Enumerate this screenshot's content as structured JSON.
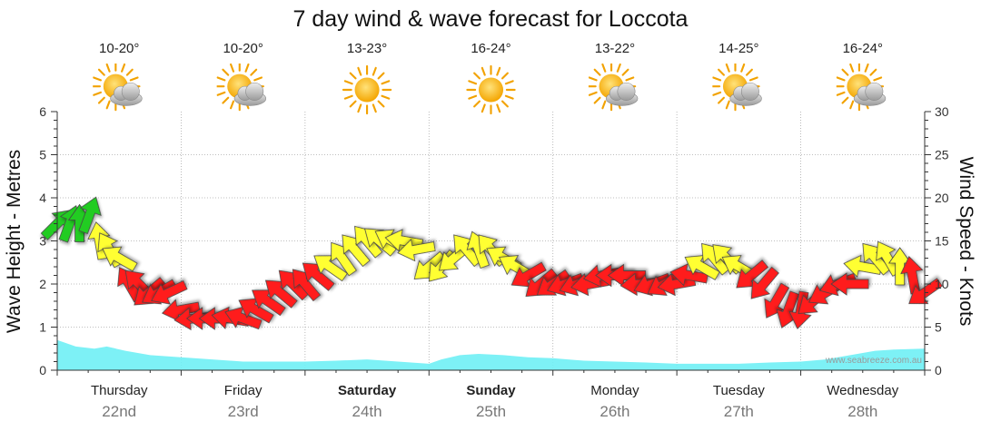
{
  "chart_data": {
    "type": "line",
    "title": "7 day wind & wave forecast for Loccota",
    "ylabel_left": "Wave Height - Metres",
    "ylabel_right": "Wind Speed - Knots",
    "ylim_left": [
      0,
      6
    ],
    "ylim_right": [
      0,
      30
    ],
    "yticks_left": [
      "0",
      "1",
      "2",
      "3",
      "4",
      "5",
      "6"
    ],
    "yticks_right": [
      "0",
      "5",
      "10",
      "15",
      "20",
      "25",
      "30"
    ],
    "grid": true,
    "watermark": "www.seabreeze.com.au",
    "days": [
      {
        "name": "Thursday",
        "date": "22nd",
        "temp": "10-20°",
        "icon": "partly-cloudy-sun-icon",
        "bold": false
      },
      {
        "name": "Friday",
        "date": "23rd",
        "temp": "10-20°",
        "icon": "partly-cloudy-sun-icon",
        "bold": false
      },
      {
        "name": "Saturday",
        "date": "24th",
        "temp": "13-23°",
        "icon": "sun-icon",
        "bold": true
      },
      {
        "name": "Sunday",
        "date": "25th",
        "temp": "16-24°",
        "icon": "sun-icon",
        "bold": true
      },
      {
        "name": "Monday",
        "date": "26th",
        "temp": "13-22°",
        "icon": "partly-cloudy-sun-icon",
        "bold": false
      },
      {
        "name": "Tuesday",
        "date": "27th",
        "temp": "14-25°",
        "icon": "partly-cloudy-sun-icon",
        "bold": false
      },
      {
        "name": "Wednesday",
        "date": "28th",
        "temp": "16-24°",
        "icon": "partly-cloudy-sun-icon",
        "bold": false
      }
    ],
    "colors": {
      "wave_fill": "#6ff0f5",
      "wind_red": "#ff1a1a",
      "wind_yellow": "#ffff33",
      "wind_green": "#22cc22",
      "grid": "#aaaaaa"
    },
    "wave_series": {
      "name": "Wave Height",
      "x_days": [
        0,
        0.15,
        0.3,
        0.4,
        0.55,
        0.75,
        1.0,
        1.25,
        1.5,
        1.75,
        2.0,
        2.25,
        2.5,
        2.75,
        3.0,
        3.1,
        3.25,
        3.4,
        3.6,
        3.8,
        4.0,
        4.25,
        4.5,
        4.75,
        5.0,
        5.25,
        5.5,
        5.75,
        6.0,
        6.2,
        6.4,
        6.6,
        6.75,
        7.0
      ],
      "values": [
        0.7,
        0.55,
        0.5,
        0.55,
        0.45,
        0.35,
        0.3,
        0.25,
        0.2,
        0.2,
        0.2,
        0.22,
        0.25,
        0.2,
        0.15,
        0.25,
        0.35,
        0.38,
        0.35,
        0.3,
        0.28,
        0.22,
        0.2,
        0.18,
        0.15,
        0.15,
        0.15,
        0.18,
        0.2,
        0.25,
        0.35,
        0.45,
        0.48,
        0.5
      ]
    },
    "wind_series": {
      "name": "Wind Speed",
      "x_days": [
        0.0,
        0.1,
        0.18,
        0.26,
        0.34,
        0.42,
        0.5,
        0.58,
        0.66,
        0.74,
        0.82,
        0.9,
        1.0,
        1.1,
        1.2,
        1.3,
        1.4,
        1.5,
        1.6,
        1.7,
        1.8,
        1.9,
        2.0,
        2.1,
        2.2,
        2.3,
        2.4,
        2.5,
        2.6,
        2.7,
        2.8,
        2.9,
        3.0,
        3.1,
        3.2,
        3.3,
        3.4,
        3.5,
        3.6,
        3.7,
        3.8,
        3.9,
        4.0,
        4.1,
        4.2,
        4.3,
        4.4,
        4.5,
        4.6,
        4.7,
        4.8,
        4.9,
        5.0,
        5.1,
        5.2,
        5.3,
        5.4,
        5.5,
        5.6,
        5.7,
        5.8,
        5.9,
        6.0,
        6.1,
        6.2,
        6.3,
        6.4,
        6.5,
        6.6,
        6.7,
        6.8,
        6.9,
        7.0
      ],
      "knots": [
        17,
        17,
        17,
        18,
        15,
        14,
        13,
        10,
        10,
        9,
        9,
        9,
        7,
        6,
        6,
        6,
        6,
        6,
        7,
        8,
        9,
        10,
        10,
        11,
        12,
        13,
        14,
        15,
        15,
        15,
        15,
        14,
        12,
        12,
        13,
        14,
        14,
        14,
        13,
        12,
        11,
        10,
        10,
        10,
        10,
        10,
        11,
        11,
        11,
        10,
        10,
        10,
        10,
        11,
        12,
        13,
        13,
        12,
        11,
        10,
        8,
        7,
        7,
        8,
        9,
        10,
        10,
        12,
        13,
        13,
        12,
        11,
        9
      ],
      "direction_deg": [
        45,
        20,
        0,
        20,
        -10,
        -30,
        -60,
        -30,
        -45,
        -130,
        -120,
        -115,
        -100,
        -95,
        -90,
        -90,
        -80,
        -70,
        -60,
        -55,
        -50,
        -45,
        -40,
        -50,
        -55,
        -35,
        -40,
        -40,
        -50,
        -60,
        -80,
        -100,
        -130,
        -140,
        -130,
        -40,
        -20,
        -40,
        -60,
        -60,
        -120,
        -130,
        -125,
        -110,
        -110,
        -100,
        -100,
        -90,
        -90,
        -95,
        -110,
        -120,
        -100,
        -80,
        -60,
        -40,
        -45,
        -60,
        -130,
        -140,
        -150,
        -160,
        -170,
        -130,
        -120,
        -110,
        -90,
        -80,
        -40,
        -30,
        0,
        -10,
        -125
      ]
    }
  }
}
